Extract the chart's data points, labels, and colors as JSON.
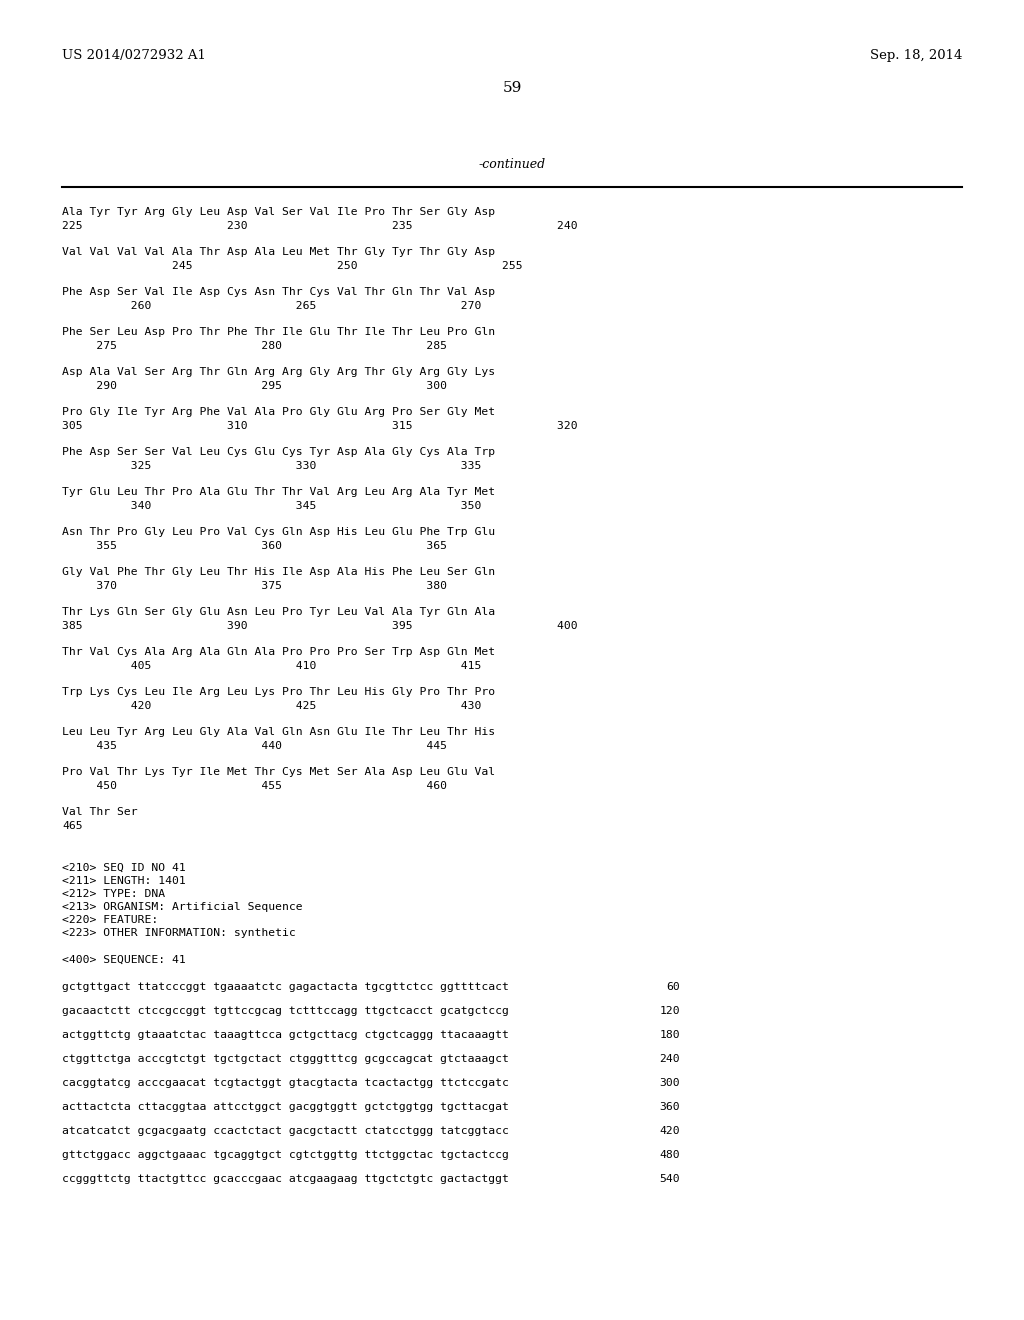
{
  "header_left": "US 2014/0272932 A1",
  "header_right": "Sep. 18, 2014",
  "page_number": "59",
  "continued_label": "-continued",
  "background_color": "#ffffff",
  "text_color": "#000000",
  "seq_pairs": [
    [
      "Ala Tyr Tyr Arg Gly Leu Asp Val Ser Val Ile Pro Thr Ser Gly Asp",
      "225                     230                     235                     240"
    ],
    [
      "Val Val Val Val Ala Thr Asp Ala Leu Met Thr Gly Tyr Thr Gly Asp",
      "                245                     250                     255"
    ],
    [
      "Phe Asp Ser Val Ile Asp Cys Asn Thr Cys Val Thr Gln Thr Val Asp",
      "          260                     265                     270"
    ],
    [
      "Phe Ser Leu Asp Pro Thr Phe Thr Ile Glu Thr Ile Thr Leu Pro Gln",
      "     275                     280                     285"
    ],
    [
      "Asp Ala Val Ser Arg Thr Gln Arg Arg Gly Arg Thr Gly Arg Gly Lys",
      "     290                     295                     300"
    ],
    [
      "Pro Gly Ile Tyr Arg Phe Val Ala Pro Gly Glu Arg Pro Ser Gly Met",
      "305                     310                     315                     320"
    ],
    [
      "Phe Asp Ser Ser Val Leu Cys Glu Cys Tyr Asp Ala Gly Cys Ala Trp",
      "          325                     330                     335"
    ],
    [
      "Tyr Glu Leu Thr Pro Ala Glu Thr Thr Val Arg Leu Arg Ala Tyr Met",
      "          340                     345                     350"
    ],
    [
      "Asn Thr Pro Gly Leu Pro Val Cys Gln Asp His Leu Glu Phe Trp Glu",
      "     355                     360                     365"
    ],
    [
      "Gly Val Phe Thr Gly Leu Thr His Ile Asp Ala His Phe Leu Ser Gln",
      "     370                     375                     380"
    ],
    [
      "Thr Lys Gln Ser Gly Glu Asn Leu Pro Tyr Leu Val Ala Tyr Gln Ala",
      "385                     390                     395                     400"
    ],
    [
      "Thr Val Cys Ala Arg Ala Gln Ala Pro Pro Pro Ser Trp Asp Gln Met",
      "          405                     410                     415"
    ],
    [
      "Trp Lys Cys Leu Ile Arg Leu Lys Pro Thr Leu His Gly Pro Thr Pro",
      "          420                     425                     430"
    ],
    [
      "Leu Leu Tyr Arg Leu Gly Ala Val Gln Asn Glu Ile Thr Leu Thr His",
      "     435                     440                     445"
    ],
    [
      "Pro Val Thr Lys Tyr Ile Met Thr Cys Met Ser Ala Asp Leu Glu Val",
      "     450                     455                     460"
    ]
  ],
  "seq_tail": [
    "Val Thr Ser",
    "465"
  ],
  "metadata": [
    "<210> SEQ ID NO 41",
    "<211> LENGTH: 1401",
    "<212> TYPE: DNA",
    "<213> ORGANISM: Artificial Sequence",
    "<220> FEATURE:",
    "<223> OTHER INFORMATION: synthetic"
  ],
  "seq_header": "<400> SEQUENCE: 41",
  "dna_seqs": [
    [
      "gctgttgact ttatcccggt tgaaaatctc gagactacta tgcgttctcc ggttttcact",
      "60"
    ],
    [
      "gacaactctt ctccgccggt tgttccgcag tctttccagg ttgctcacct gcatgctccg",
      "120"
    ],
    [
      "actggttctg gtaaatctac taaagttcca gctgcttacg ctgctcaggg ttacaaagtt",
      "180"
    ],
    [
      "ctggttctga acccgtctgt tgctgctact ctgggtttcg gcgccagcat gtctaaagct",
      "240"
    ],
    [
      "cacggtatcg acccgaacat tcgtactggt gtacgtacta tcactactgg ttctccgatc",
      "300"
    ],
    [
      "acttactcta cttacggtaa attcctggct gacggtggtt gctctggtgg tgcttacgat",
      "360"
    ],
    [
      "atcatcatct gcgacgaatg ccactctact gacgctactt ctatcctggg tatcggtacc",
      "420"
    ],
    [
      "gttctggacc aggctgaaac tgcaggtgct cgtctggttg ttctggctac tgctactccg",
      "480"
    ],
    [
      "ccgggttctg ttactgttcc gcacccgaac atcgaagaag ttgctctgtc gactactggt",
      "540"
    ]
  ]
}
